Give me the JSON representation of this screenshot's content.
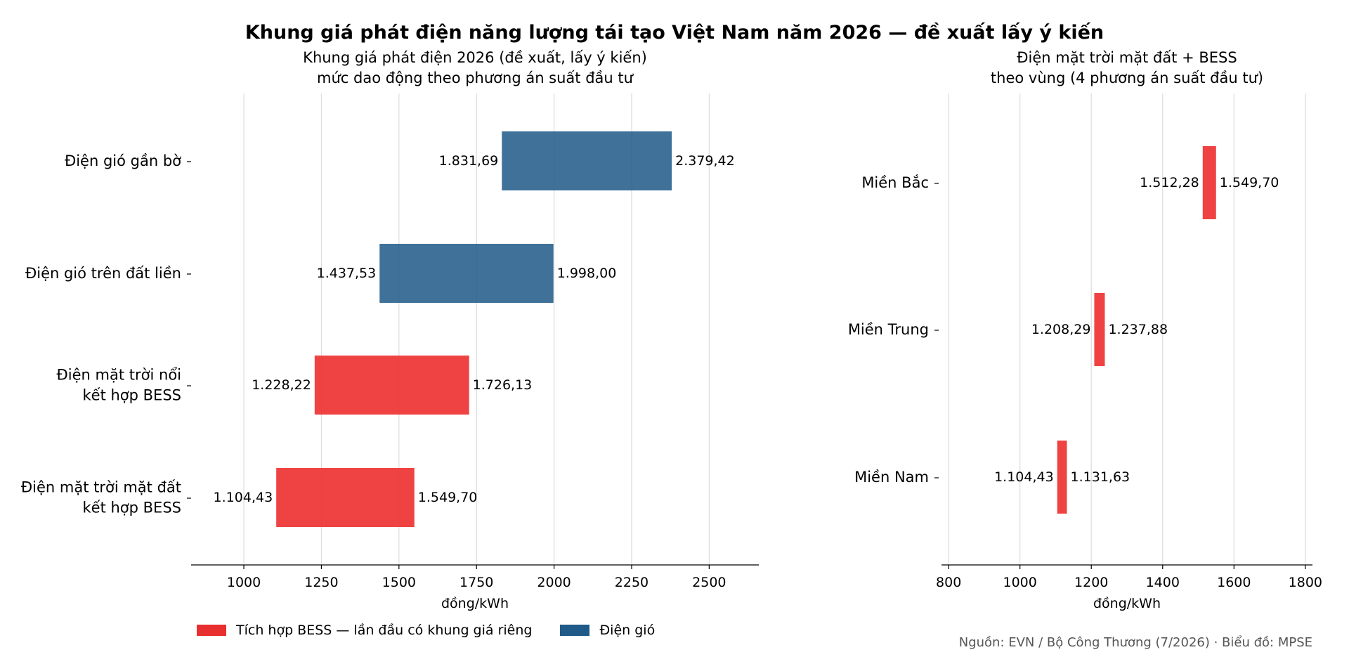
{
  "title": "Khung giá phát điện năng lượng tái tạo Việt Nam năm 2026 — đề xuất lấy ý kiến",
  "source": "Nguồn: EVN / Bộ Công Thương (7/2026) · Biểu đồ: MPSE",
  "colors": {
    "bess": "#ee3333",
    "wind": "#1f5a88"
  },
  "legend": [
    {
      "label": "Tích hợp BESS — lần đầu có khung giá riêng",
      "color": "#e82f2f"
    },
    {
      "label": "Điện gió",
      "color": "#1f5a88"
    }
  ],
  "panels": {
    "left": {
      "subtitle": [
        "Khung giá phát điện 2026 (đề xuất, lấy ý kiến)",
        "mức dao động theo phương án suất đầu tư"
      ]
    },
    "right": {
      "subtitle": [
        "Điện mặt trời mặt đất + BESS",
        "theo vùng (4 phương án suất đầu tư)"
      ]
    }
  },
  "chart_data": [
    {
      "type": "bar",
      "orientation": "horizontal-range",
      "xlabel": "đồng/kWh",
      "xlim": [
        830,
        2660
      ],
      "xticks": [
        1000,
        1250,
        1500,
        1750,
        2000,
        2250,
        2500
      ],
      "grid": "vertical",
      "categories": [
        {
          "label": [
            "Điện gió gần bờ"
          ],
          "low": 1831.69,
          "high": 2379.42,
          "low_label": "1.831,69",
          "high_label": "2.379,42",
          "group": "wind"
        },
        {
          "label": [
            "Điện gió trên đất liền"
          ],
          "low": 1437.53,
          "high": 1998.0,
          "low_label": "1.437,53",
          "high_label": "1.998,00",
          "group": "wind"
        },
        {
          "label": [
            "Điện mặt trời nổi",
            "kết hợp BESS"
          ],
          "low": 1228.22,
          "high": 1726.13,
          "low_label": "1.228,22",
          "high_label": "1.726,13",
          "group": "bess"
        },
        {
          "label": [
            "Điện mặt trời mặt đất",
            "kết hợp BESS"
          ],
          "low": 1104.43,
          "high": 1549.7,
          "low_label": "1.104,43",
          "high_label": "1.549,70",
          "group": "bess"
        }
      ]
    },
    {
      "type": "bar",
      "orientation": "horizontal-range",
      "xlabel": "đồng/kWh",
      "xlim": [
        780,
        1820
      ],
      "xticks": [
        800,
        1000,
        1200,
        1400,
        1600,
        1800
      ],
      "grid": "vertical",
      "categories": [
        {
          "label": [
            "Miền Bắc"
          ],
          "low": 1512.28,
          "high": 1549.7,
          "low_label": "1.512,28",
          "high_label": "1.549,70",
          "group": "bess"
        },
        {
          "label": [
            "Miền Trung"
          ],
          "low": 1208.29,
          "high": 1237.88,
          "low_label": "1.208,29",
          "high_label": "1.237,88",
          "group": "bess"
        },
        {
          "label": [
            "Miền Nam"
          ],
          "low": 1104.43,
          "high": 1131.63,
          "low_label": "1.104,43",
          "high_label": "1.131,63",
          "group": "bess"
        }
      ]
    }
  ]
}
